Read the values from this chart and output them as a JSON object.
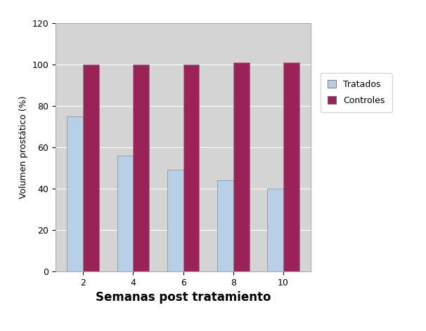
{
  "weeks": [
    2,
    4,
    6,
    8,
    10
  ],
  "tratados": [
    75,
    56,
    49,
    44,
    40
  ],
  "controles": [
    100,
    100,
    100,
    101,
    101
  ],
  "tratados_color": "#b8cfe8",
  "controles_color": "#9b2257",
  "xlabel": "Semanas post tratamiento",
  "ylabel": "Volumen prostático (%)",
  "ylim": [
    0,
    120
  ],
  "yticks": [
    0,
    20,
    40,
    60,
    80,
    100,
    120
  ],
  "legend_tratados": "Tratados",
  "legend_controles": "Controles",
  "bar_width": 0.32,
  "plot_bg_color": "#d4d4d4",
  "fig_bg_color": "#ffffff",
  "xlabel_fontsize": 12,
  "ylabel_fontsize": 9,
  "tick_fontsize": 9,
  "legend_fontsize": 9
}
